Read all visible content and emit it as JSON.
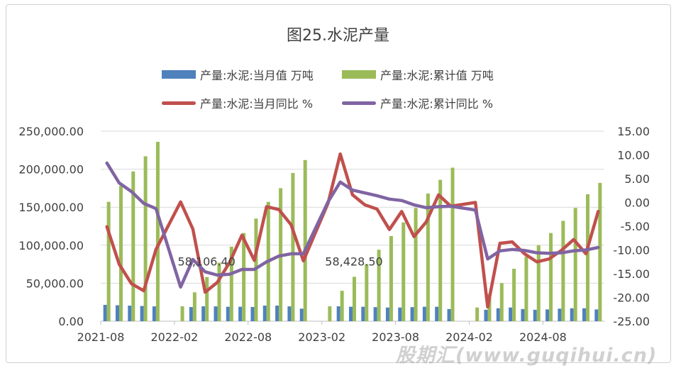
{
  "chart_data": {
    "type": "bar+line",
    "title": "图25.水泥产量",
    "categories": [
      "2021-08",
      "2021-09",
      "2021-10",
      "2021-11",
      "2021-12",
      "2022-01",
      "2022-02",
      "2022-03",
      "2022-04",
      "2022-05",
      "2022-06",
      "2022-07",
      "2022-08",
      "2022-09",
      "2022-10",
      "2022-11",
      "2022-12",
      "2023-01",
      "2023-02",
      "2023-03",
      "2023-04",
      "2023-05",
      "2023-06",
      "2023-07",
      "2023-08",
      "2023-09",
      "2023-10",
      "2023-11",
      "2023-12",
      "2024-01",
      "2024-02",
      "2024-03",
      "2024-04",
      "2024-05",
      "2024-06",
      "2024-07",
      "2024-08",
      "2024-09",
      "2024-10",
      "2024-11",
      "2024-12"
    ],
    "x_tick_labels": [
      "2021-08",
      "2022-02",
      "2022-08",
      "2023-02",
      "2023-08",
      "2024-02",
      "2024-08"
    ],
    "y_left": {
      "range": [
        0,
        250000
      ],
      "ticks": [
        "0.00",
        "50,000.00",
        "100,000.00",
        "150,000.00",
        "200,000.00",
        "250,000.00"
      ]
    },
    "y_right": {
      "range": [
        -25,
        15
      ],
      "ticks": [
        "-25.00",
        "-20.00",
        "-15.00",
        "-10.00",
        "-5.00",
        "0.00",
        "5.00",
        "10.00",
        "15.00"
      ]
    },
    "grid": true,
    "legend_position": "top",
    "series": [
      {
        "name": "产量:水泥:当月值 万吨",
        "type": "bar",
        "axis": "left",
        "color": "#4f81bd",
        "values": [
          21500,
          21000,
          20500,
          20000,
          19500,
          null,
          null,
          18600,
          19600,
          19500,
          19000,
          19000,
          18700,
          20500,
          20500,
          19500,
          16500,
          null,
          null,
          19600,
          19000,
          19000,
          18500,
          18000,
          18000,
          18500,
          19000,
          19000,
          16000,
          null,
          null,
          15000,
          17000,
          18000,
          16000,
          15000,
          15500,
          16500,
          17000,
          17000,
          15500
        ]
      },
      {
        "name": "产量:水泥:累计值 万吨",
        "type": "bar",
        "axis": "left",
        "color": "#9bbb59",
        "values": [
          157000,
          178000,
          197000,
          217000,
          236000,
          null,
          19600,
          38000,
          58106.4,
          77000,
          98000,
          116000,
          135000,
          157000,
          175000,
          195000,
          212000,
          null,
          19600,
          40000,
          58428.5,
          75000,
          94000,
          112000,
          130000,
          149000,
          168000,
          186000,
          202000,
          null,
          18000,
          36000,
          50000,
          69000,
          85000,
          100000,
          116000,
          132000,
          149000,
          167000,
          182000
        ]
      },
      {
        "name": "产量:水泥:当月同比 %",
        "type": "line",
        "axis": "right",
        "color": "#c0504d",
        "values": [
          -5.1,
          -13.0,
          -17.1,
          -18.6,
          -9.9,
          null,
          0.1,
          -5.6,
          -18.9,
          -16.8,
          -12.6,
          -6.9,
          -12.2,
          -0.9,
          -1.5,
          -4.7,
          -12.3,
          null,
          -0.2,
          10.2,
          1.6,
          -0.5,
          -1.4,
          -5.7,
          -1.9,
          -7.2,
          -4.1,
          1.6,
          -0.8,
          null,
          0.0,
          -22.0,
          -8.6,
          -8.3,
          -10.8,
          -12.5,
          -11.9,
          -10.1,
          -7.8,
          -10.8,
          -1.9
        ]
      },
      {
        "name": "产量:水泥:累计同比 %",
        "type": "line",
        "axis": "right",
        "color": "#8064a2",
        "values": [
          8.3,
          4.1,
          2.3,
          -0.2,
          -1.3,
          null,
          -17.8,
          -12.0,
          -14.6,
          -15.3,
          -15.1,
          -14.1,
          -14.1,
          -12.5,
          -11.3,
          -10.8,
          -10.8,
          null,
          0.1,
          4.3,
          2.6,
          2.0,
          1.4,
          0.7,
          0.4,
          -0.5,
          -1.1,
          -0.9,
          -0.8,
          null,
          -1.6,
          -11.9,
          -10.2,
          -9.9,
          -10.1,
          -10.6,
          -10.7,
          -10.6,
          -10.2,
          -10.0,
          -9.5
        ]
      }
    ],
    "data_labels": [
      {
        "series": 1,
        "category": "2022-04",
        "text": "58,106.40"
      },
      {
        "series": 1,
        "category": "2023-04",
        "text": "58,428.50"
      }
    ]
  },
  "watermark": "股期汇(www.guqihui.cn)"
}
